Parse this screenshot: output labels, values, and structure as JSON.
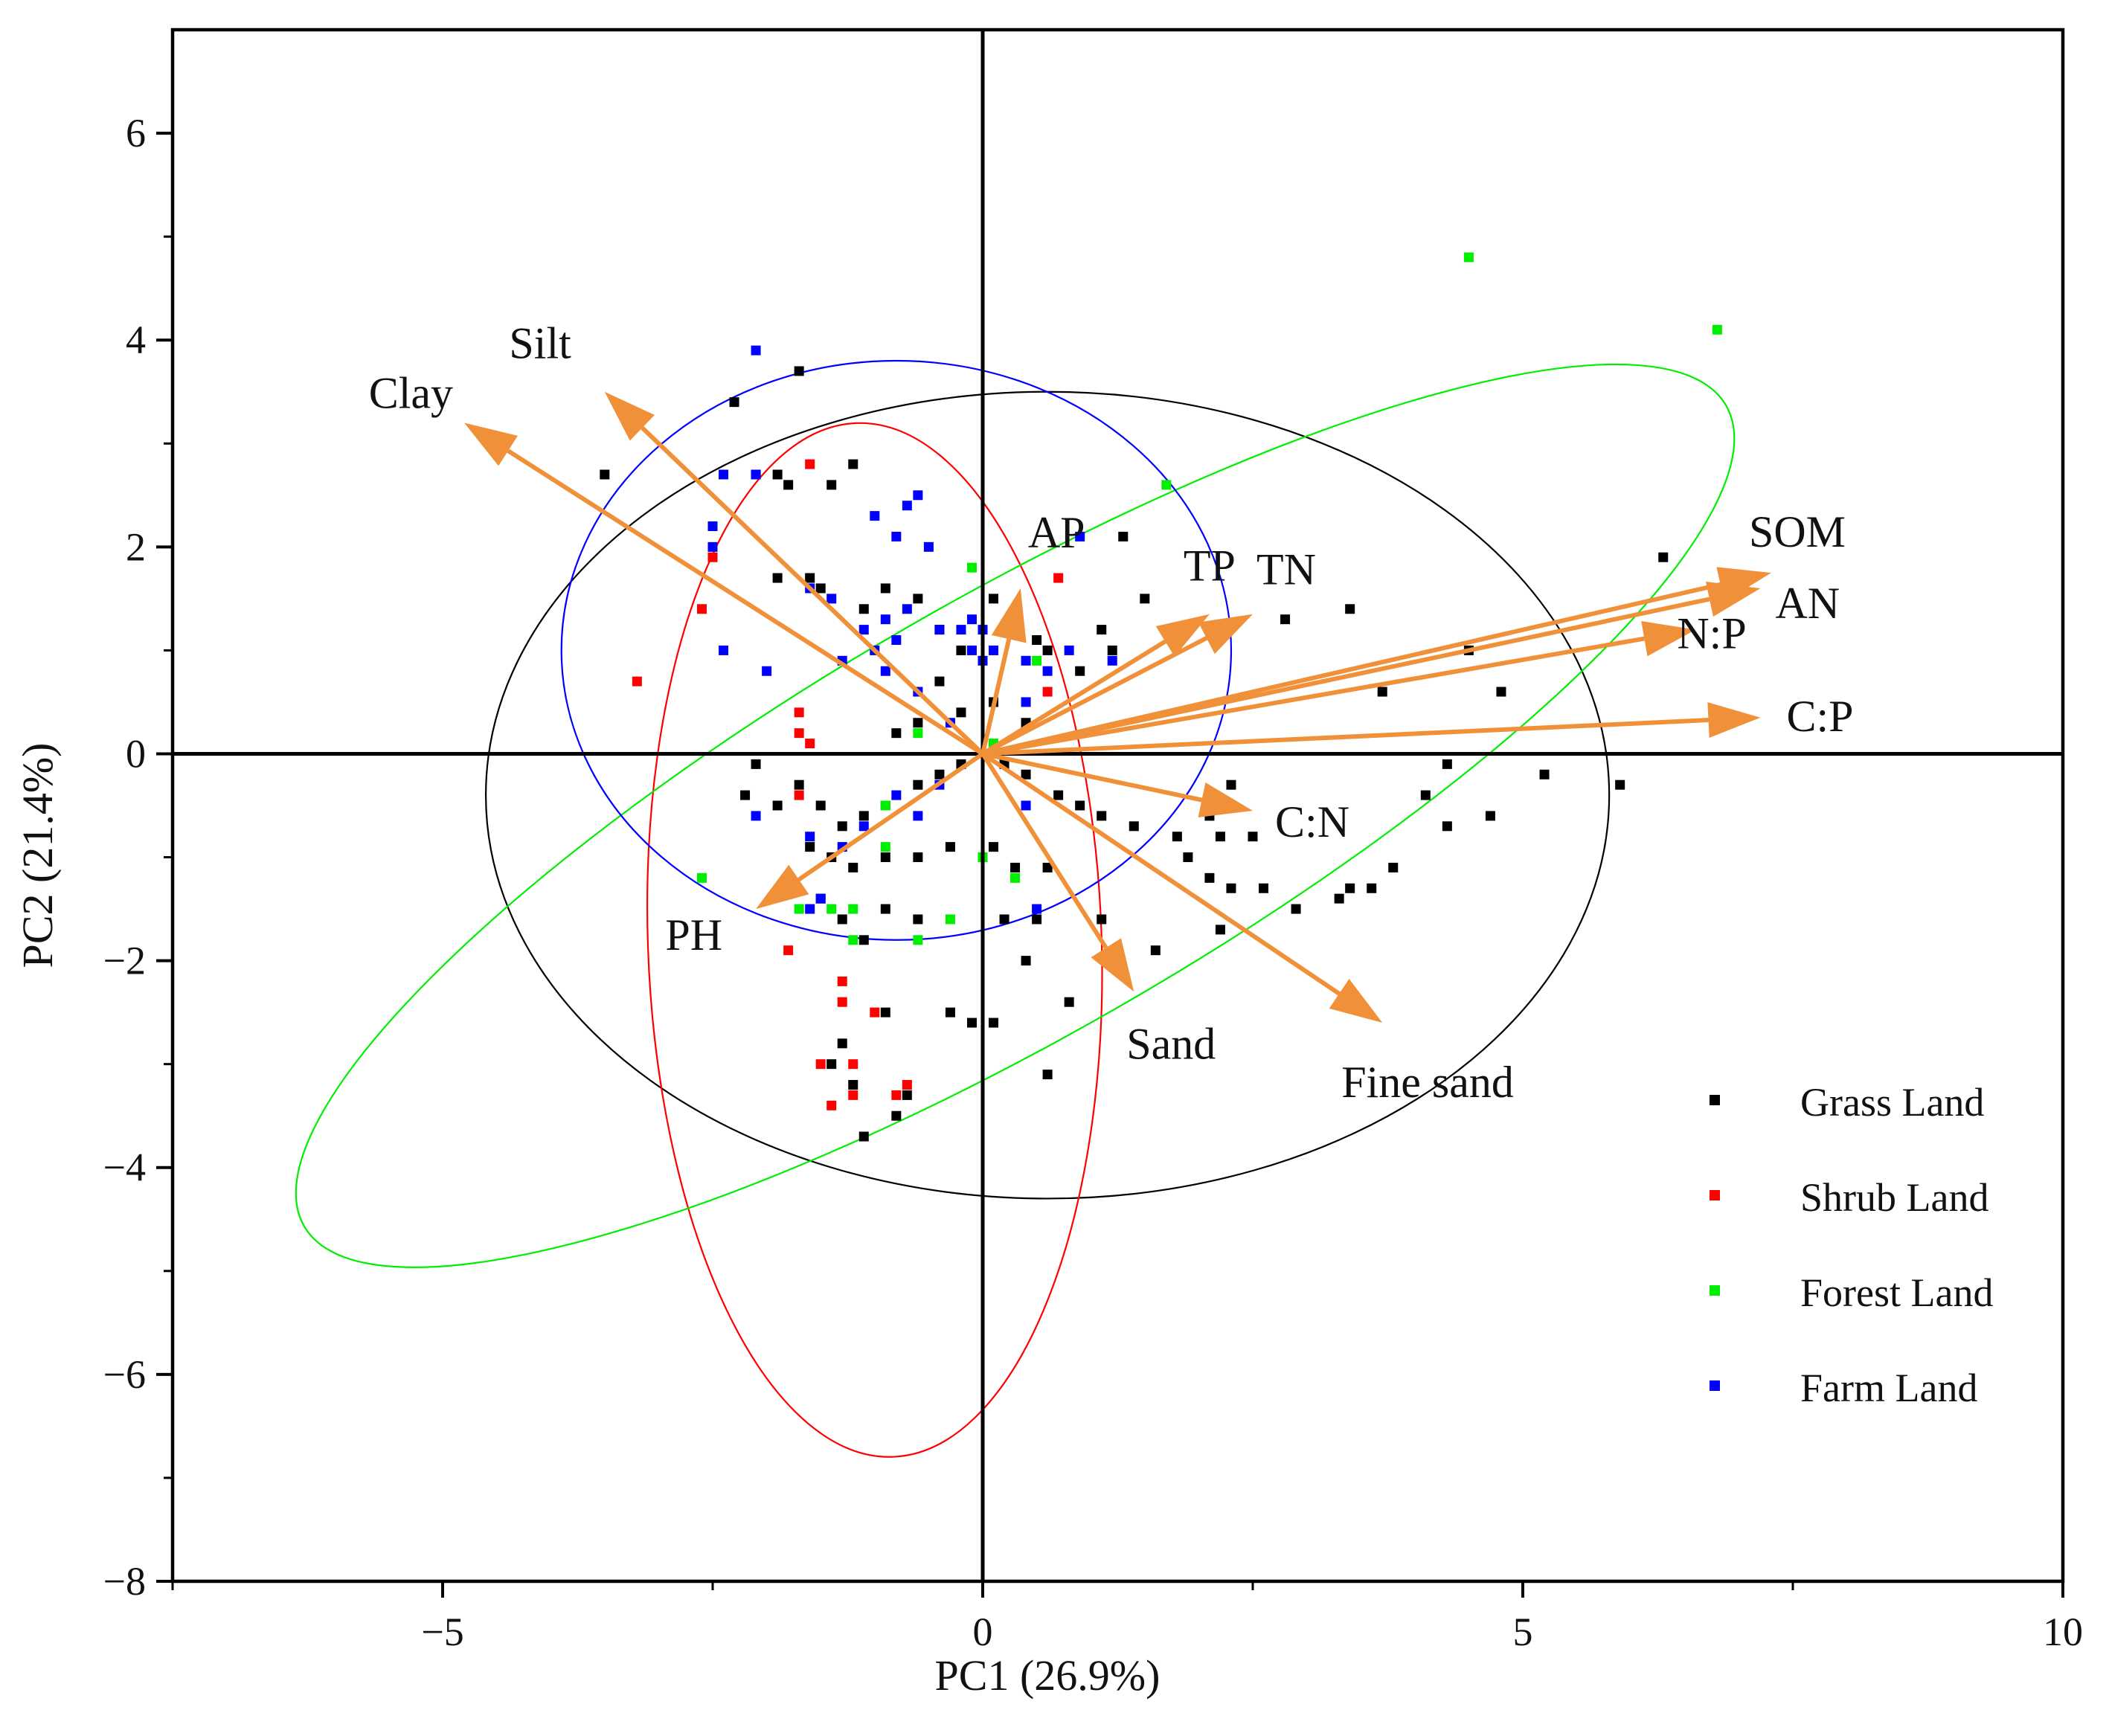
{
  "chart_data": {
    "type": "scatter",
    "subtype": "pca-biplot",
    "title": "",
    "xlabel": "PC1 (26.9%)",
    "ylabel": "PC2 (21.4%)",
    "xlim": [
      -7.5,
      10
    ],
    "ylim": [
      -8,
      7
    ],
    "xticks": [
      -5,
      0,
      5,
      10
    ],
    "yticks": [
      -8,
      -6,
      -4,
      -2,
      0,
      2,
      4,
      6
    ],
    "legend_position": "bottom-right",
    "arrow_color": "#f0913a",
    "groups": [
      {
        "name": "Grass Land",
        "color": "#000000",
        "ellipse": {
          "cx": 0.6,
          "cy": -0.4,
          "rx": 5.2,
          "ry": 3.9,
          "angle": 0
        },
        "points": [
          [
            -3.5,
            2.7
          ],
          [
            -2.3,
            3.4
          ],
          [
            -1.7,
            3.7
          ],
          [
            -1.2,
            2.8
          ],
          [
            -1.4,
            2.6
          ],
          [
            -1.9,
            2.7
          ],
          [
            -1.8,
            2.6
          ],
          [
            -2.1,
            2.7
          ],
          [
            -1.9,
            1.7
          ],
          [
            -1.6,
            1.7
          ],
          [
            -1.5,
            1.6
          ],
          [
            -1.1,
            1.4
          ],
          [
            -0.9,
            1.6
          ],
          [
            -0.6,
            1.5
          ],
          [
            -0.4,
            1.2
          ],
          [
            -0.2,
            1.0
          ],
          [
            0.1,
            1.5
          ],
          [
            0.3,
            1.2
          ],
          [
            0.5,
            1.1
          ],
          [
            0.6,
            1.0
          ],
          [
            1.1,
            1.2
          ],
          [
            1.3,
            2.1
          ],
          [
            1.5,
            1.5
          ],
          [
            1.2,
            1.0
          ],
          [
            0.9,
            0.8
          ],
          [
            -0.4,
            0.7
          ],
          [
            -0.2,
            0.4
          ],
          [
            0.1,
            0.5
          ],
          [
            0.4,
            0.3
          ],
          [
            -0.6,
            0.3
          ],
          [
            -0.8,
            0.2
          ],
          [
            -2.1,
            -0.1
          ],
          [
            -2.2,
            -0.4
          ],
          [
            -1.9,
            -0.5
          ],
          [
            -1.7,
            -0.3
          ],
          [
            -1.5,
            -0.5
          ],
          [
            -1.3,
            -0.7
          ],
          [
            -1.1,
            -0.6
          ],
          [
            -0.9,
            -0.5
          ],
          [
            -0.6,
            -0.3
          ],
          [
            -0.4,
            -0.2
          ],
          [
            -0.2,
            -0.1
          ],
          [
            0.2,
            -0.1
          ],
          [
            0.4,
            -0.2
          ],
          [
            0.7,
            -0.4
          ],
          [
            0.9,
            -0.5
          ],
          [
            1.1,
            -0.6
          ],
          [
            1.4,
            -0.7
          ],
          [
            1.8,
            -0.8
          ],
          [
            2.2,
            -0.8
          ],
          [
            2.5,
            -0.8
          ],
          [
            2.3,
            -0.3
          ],
          [
            2.1,
            -0.6
          ],
          [
            1.9,
            -1.0
          ],
          [
            2.1,
            -1.2
          ],
          [
            2.3,
            -1.3
          ],
          [
            2.6,
            -1.3
          ],
          [
            -1.6,
            -0.9
          ],
          [
            -1.4,
            -1.0
          ],
          [
            -1.2,
            -1.1
          ],
          [
            -0.9,
            -1.0
          ],
          [
            -0.6,
            -1.0
          ],
          [
            -0.3,
            -0.9
          ],
          [
            0.1,
            -0.9
          ],
          [
            0.3,
            -1.1
          ],
          [
            0.6,
            -1.1
          ],
          [
            -1.5,
            -1.4
          ],
          [
            -1.3,
            -1.6
          ],
          [
            -1.1,
            -1.8
          ],
          [
            -0.9,
            -1.5
          ],
          [
            -0.6,
            -1.6
          ],
          [
            0.2,
            -1.6
          ],
          [
            0.5,
            -1.6
          ],
          [
            1.1,
            -1.6
          ],
          [
            1.6,
            -1.9
          ],
          [
            2.2,
            -1.7
          ],
          [
            2.9,
            -1.5
          ],
          [
            0.4,
            -2.0
          ],
          [
            -0.9,
            -2.5
          ],
          [
            -0.3,
            -2.5
          ],
          [
            -0.1,
            -2.6
          ],
          [
            0.1,
            -2.6
          ],
          [
            0.8,
            -2.4
          ],
          [
            -1.3,
            -2.8
          ],
          [
            -1.4,
            -3.0
          ],
          [
            -1.2,
            -3.2
          ],
          [
            -0.7,
            -3.3
          ],
          [
            -0.8,
            -3.5
          ],
          [
            -1.1,
            -3.7
          ],
          [
            0.6,
            -3.1
          ],
          [
            3.4,
            -1.3
          ],
          [
            3.6,
            -1.3
          ],
          [
            3.8,
            -1.1
          ],
          [
            3.3,
            -1.4
          ],
          [
            4.1,
            -0.4
          ],
          [
            4.3,
            -0.7
          ],
          [
            4.7,
            -0.6
          ],
          [
            5.2,
            -0.2
          ],
          [
            5.9,
            -0.3
          ],
          [
            4.3,
            -0.1
          ],
          [
            3.7,
            0.6
          ],
          [
            4.8,
            0.6
          ],
          [
            4.5,
            1.0
          ],
          [
            3.4,
            1.4
          ],
          [
            2.8,
            1.3
          ],
          [
            6.3,
            1.9
          ]
        ]
      },
      {
        "name": "Shrub Land",
        "color": "#ff0000",
        "ellipse": {
          "cx": -1.0,
          "cy": -1.8,
          "rx": 2.1,
          "ry": 5.0,
          "angle": 2
        },
        "points": [
          [
            -1.6,
            2.8
          ],
          [
            -2.5,
            1.9
          ],
          [
            -2.6,
            1.4
          ],
          [
            -3.2,
            0.7
          ],
          [
            -1.7,
            0.4
          ],
          [
            -1.7,
            0.2
          ],
          [
            -1.6,
            0.1
          ],
          [
            -1.7,
            -0.4
          ],
          [
            0.7,
            1.7
          ],
          [
            0.6,
            0.6
          ],
          [
            -1.8,
            -1.9
          ],
          [
            -1.3,
            -2.2
          ],
          [
            -1.3,
            -2.4
          ],
          [
            -1.0,
            -2.5
          ],
          [
            -1.5,
            -3.0
          ],
          [
            -1.2,
            -3.0
          ],
          [
            -1.4,
            -3.4
          ],
          [
            -1.2,
            -3.3
          ],
          [
            -0.7,
            -3.2
          ],
          [
            -0.8,
            -3.3
          ]
        ]
      },
      {
        "name": "Forest Land",
        "color": "#00ee00",
        "ellipse": {
          "cx": 0.3,
          "cy": -0.6,
          "rx": 7.6,
          "ry": 2.1,
          "angle": 30
        },
        "points": [
          [
            4.5,
            4.8
          ],
          [
            6.8,
            4.1
          ],
          [
            1.7,
            2.6
          ],
          [
            -0.1,
            1.8
          ],
          [
            0.5,
            0.9
          ],
          [
            0.1,
            0.1
          ],
          [
            -0.6,
            0.2
          ],
          [
            -2.6,
            -1.2
          ],
          [
            -1.7,
            -1.5
          ],
          [
            -1.2,
            -1.5
          ],
          [
            -1.2,
            -1.8
          ],
          [
            -0.6,
            -1.8
          ],
          [
            -0.3,
            -1.6
          ],
          [
            0.3,
            -1.2
          ],
          [
            -0.9,
            -0.5
          ],
          [
            -0.9,
            -0.9
          ],
          [
            -1.4,
            -1.5
          ],
          [
            0.0,
            -1.0
          ]
        ]
      },
      {
        "name": "Farm Land",
        "color": "#0000ff",
        "ellipse": {
          "cx": -0.8,
          "cy": 1.0,
          "rx": 3.1,
          "ry": 2.8,
          "angle": 0
        },
        "points": [
          [
            -2.1,
            3.9
          ],
          [
            -2.4,
            2.7
          ],
          [
            -2.1,
            2.7
          ],
          [
            -2.5,
            2.2
          ],
          [
            -2.5,
            2.0
          ],
          [
            -1.6,
            1.6
          ],
          [
            -1.4,
            1.5
          ],
          [
            -1.1,
            1.2
          ],
          [
            -0.8,
            1.1
          ],
          [
            -0.9,
            0.8
          ],
          [
            -0.6,
            0.6
          ],
          [
            -0.3,
            0.3
          ],
          [
            -0.1,
            1.0
          ],
          [
            0.0,
            0.9
          ],
          [
            0.4,
            0.9
          ],
          [
            0.6,
            0.8
          ],
          [
            0.4,
            0.5
          ],
          [
            0.8,
            1.0
          ],
          [
            1.2,
            0.9
          ],
          [
            0.9,
            2.1
          ],
          [
            -0.1,
            1.3
          ],
          [
            0.0,
            1.2
          ],
          [
            0.1,
            1.0
          ],
          [
            -0.2,
            1.2
          ],
          [
            -0.4,
            1.2
          ],
          [
            -0.7,
            1.4
          ],
          [
            -0.9,
            1.3
          ],
          [
            -1.0,
            1.0
          ],
          [
            -1.3,
            0.9
          ],
          [
            -0.6,
            2.5
          ],
          [
            -0.7,
            2.4
          ],
          [
            -1.0,
            2.3
          ],
          [
            -0.8,
            2.1
          ],
          [
            -0.5,
            2.0
          ],
          [
            -2.4,
            1.0
          ],
          [
            -2.0,
            0.8
          ],
          [
            -2.1,
            -0.6
          ],
          [
            -1.6,
            -0.8
          ],
          [
            -1.3,
            -0.9
          ],
          [
            -1.5,
            -1.4
          ],
          [
            -1.6,
            -1.5
          ],
          [
            -1.1,
            -0.7
          ],
          [
            -0.6,
            -0.6
          ],
          [
            -0.4,
            -0.3
          ],
          [
            0.4,
            -0.5
          ],
          [
            0.5,
            -1.5
          ],
          [
            -0.8,
            -0.4
          ]
        ]
      }
    ],
    "loadings": [
      {
        "name": "Clay",
        "x": -4.8,
        "y": 3.2
      },
      {
        "name": "Silt",
        "x": -3.5,
        "y": 3.5
      },
      {
        "name": "AP",
        "x": 0.35,
        "y": 1.6
      },
      {
        "name": "TP",
        "x": 2.1,
        "y": 1.35
      },
      {
        "name": "TN",
        "x": 2.5,
        "y": 1.35
      },
      {
        "name": "SOM",
        "x": 7.3,
        "y": 1.75
      },
      {
        "name": "AN",
        "x": 7.2,
        "y": 1.6
      },
      {
        "name": "N:P",
        "x": 6.6,
        "y": 1.2
      },
      {
        "name": "C:P",
        "x": 7.2,
        "y": 0.35
      },
      {
        "name": "C:N",
        "x": 2.5,
        "y": -0.55
      },
      {
        "name": "Sand",
        "x": 1.4,
        "y": -2.3
      },
      {
        "name": "Fine sand",
        "x": 3.7,
        "y": -2.6
      },
      {
        "name": "PH",
        "x": -2.1,
        "y": -1.5
      }
    ]
  }
}
